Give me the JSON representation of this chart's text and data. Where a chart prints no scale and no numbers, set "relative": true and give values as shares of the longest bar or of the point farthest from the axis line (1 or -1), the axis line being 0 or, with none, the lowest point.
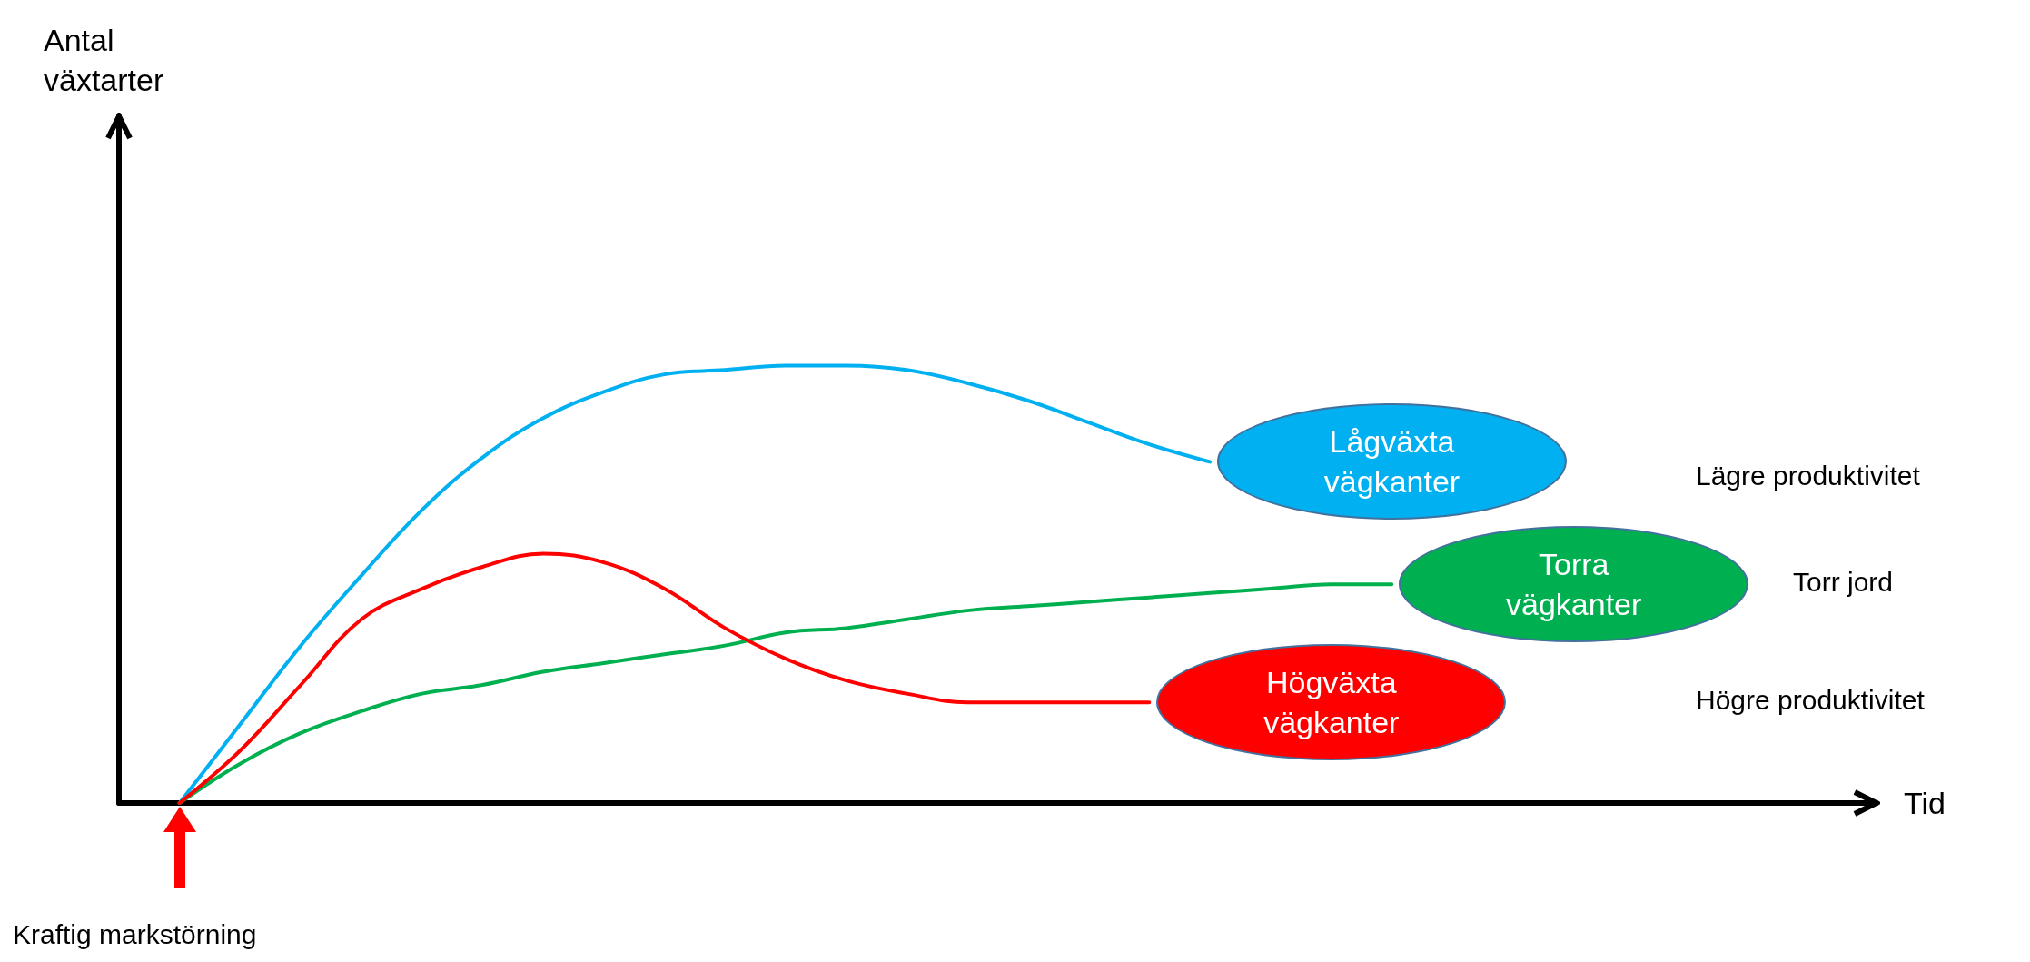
{
  "chart_data": {
    "type": "line",
    "relative": true,
    "xlabel": "Tid",
    "legend": false,
    "marker": "none",
    "line_style": "solid",
    "grid": false,
    "categories": [
      null,
      null,
      null,
      null,
      null,
      null,
      null,
      null,
      null,
      null,
      null,
      null,
      null,
      null,
      null,
      null,
      null,
      null,
      null,
      null,
      null,
      null,
      null,
      null,
      null,
      null,
      null,
      null,
      null,
      null
    ],
    "series": [
      {
        "name": "Lågväxta vägkanter",
        "color": "#00b0f0",
        "values": [
          null,
          0,
          0.18,
          0.36,
          0.52,
          0.67,
          0.79,
          0.88,
          0.94,
          0.98,
          0.99,
          1,
          1,
          0.99,
          0.96,
          0.92,
          0.87,
          0.82,
          0.78,
          null,
          null,
          null,
          null,
          null,
          null,
          null,
          null,
          null,
          null,
          null
        ]
      },
      {
        "name": "Torra vägkanter",
        "color": "#00b050",
        "values": [
          null,
          0,
          0.09,
          0.16,
          0.21,
          0.25,
          0.27,
          0.3,
          0.32,
          0.34,
          0.36,
          0.39,
          0.4,
          0.42,
          0.44,
          0.45,
          0.46,
          0.47,
          0.48,
          0.49,
          0.5,
          0.5,
          null,
          null,
          null,
          null,
          null,
          null,
          null,
          null
        ]
      },
      {
        "name": "Högväxta vägkanter",
        "color": "#ff0000",
        "values": [
          null,
          0,
          0.12,
          0.27,
          0.42,
          0.49,
          0.54,
          0.57,
          0.55,
          0.49,
          0.4,
          0.33,
          0.28,
          0.25,
          0.23,
          0.23,
          0.23,
          0.23,
          null,
          null,
          null,
          null,
          null,
          null,
          null,
          null,
          null,
          null,
          null,
          null
        ]
      }
    ],
    "annotations": [
      "Lägre produktivitet",
      "Torr jord",
      "Högre produktivitet",
      "Kraftig markstörning",
      "Antal växtarter"
    ]
  }
}
